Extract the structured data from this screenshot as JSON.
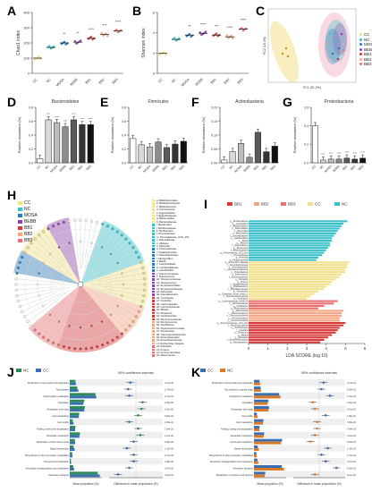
{
  "panels": {
    "A": {
      "letter": "A",
      "ylabel": "Chao1 index",
      "yticks": [
        "0",
        "100",
        "200",
        "300",
        "400"
      ]
    },
    "B": {
      "letter": "B",
      "ylabel": "Shannon index",
      "yticks": [
        "0",
        "2",
        "4",
        "6"
      ]
    },
    "C": {
      "letter": "C",
      "xlabel": "PC1 (31.2%)",
      "ylabel": "PC2 (18.4%)"
    },
    "D": {
      "letter": "D",
      "title": "Bacteroidetes",
      "ylabel": "Relative abundance (%)",
      "yticks": [
        "0.0",
        "0.2",
        "0.4",
        "0.6",
        "0.8"
      ]
    },
    "E": {
      "letter": "E",
      "title": "Firmicutes",
      "ylabel": "Relative abundance (%)",
      "yticks": [
        "0.0",
        "0.2",
        "0.4",
        "0.6",
        "0.8"
      ]
    },
    "F": {
      "letter": "F",
      "title": "Actinobacteria",
      "ylabel": "Relative abundance (%)",
      "yticks": [
        "0.00",
        "0.05",
        "0.10",
        "0.15",
        "0.20"
      ]
    },
    "G": {
      "letter": "G",
      "title": "Proteobacteria",
      "ylabel": "Relative abundance (%)",
      "yticks": [
        "0.0",
        "0.2",
        "0.4",
        "0.6"
      ]
    },
    "H": {
      "letter": "H"
    },
    "I": {
      "letter": "I",
      "xlabel": "LDA SCORE (log 10)",
      "xticks": [
        "0",
        "1",
        "2",
        "3",
        "4",
        "5",
        "6"
      ]
    },
    "J": {
      "letter": "J",
      "ci_title": "95% confidence intervals",
      "xlabel_left": "Mean proportion (%)",
      "xlabel_right": "Difference in mean proportions (%)"
    },
    "K": {
      "letter": "K",
      "ci_title": "95% confidence intervals",
      "xlabel_left": "Mean proportion (%)",
      "xlabel_right": "Difference in mean proportions (%)"
    }
  },
  "groups": [
    "CC",
    "NC",
    "MOSA",
    "BEBB",
    "BB1",
    "BB2",
    "BB3"
  ],
  "colors": {
    "CC": "#f2e08a",
    "NC": "#39c0c8",
    "MOSA": "#2d7bb8",
    "BEBB": "#8e44ad",
    "BB1": "#d63a3a",
    "BB2": "#f4a582",
    "BB3": "#e87070",
    "dark": "#555555",
    "green": "#2e8b57",
    "blue": "#3a6fb0",
    "orange": "#d97a2b"
  },
  "stars": {
    "A": [
      "",
      "",
      "**",
      "**",
      "****",
      "***",
      "****"
    ],
    "B": [
      "",
      "",
      "**",
      "****",
      "***",
      "****",
      "****"
    ],
    "D": [
      "",
      "****",
      "****",
      "****",
      "****",
      "****",
      "****"
    ],
    "E": [
      "",
      "",
      "",
      "",
      "",
      "",
      ""
    ],
    "F": [
      "",
      "",
      "",
      "",
      "",
      "*",
      ""
    ],
    "G": [
      "",
      "****",
      "****",
      "****",
      "****",
      "****",
      "****"
    ]
  },
  "chart_data": [
    {
      "id": "A",
      "type": "scatter",
      "ylabel": "Chao1 index",
      "ylim": [
        0,
        400
      ],
      "categories": [
        "CC",
        "NC",
        "MOSA",
        "BEBB",
        "BB1",
        "BB2",
        "BB3"
      ],
      "values": [
        100,
        170,
        200,
        205,
        230,
        255,
        280
      ]
    },
    {
      "id": "B",
      "type": "scatter",
      "ylabel": "Shannon index",
      "ylim": [
        0,
        7
      ],
      "categories": [
        "CC",
        "NC",
        "MOSA",
        "BEBB",
        "BB1",
        "BB2",
        "BB3"
      ],
      "values": [
        2.3,
        3.9,
        4.4,
        4.6,
        4.4,
        4.2,
        5.1
      ]
    },
    {
      "id": "D",
      "type": "bar",
      "title": "Bacteroidetes",
      "ylabel": "Relative abundance (%)",
      "ylim": [
        0,
        0.8
      ],
      "categories": [
        "CC",
        "NC",
        "MOSA",
        "BEBB",
        "BB1",
        "BB2",
        "BB3"
      ],
      "values": [
        0.06,
        0.62,
        0.58,
        0.52,
        0.62,
        0.55,
        0.55
      ]
    },
    {
      "id": "E",
      "type": "bar",
      "title": "Firmicutes",
      "ylabel": "Relative abundance (%)",
      "ylim": [
        0,
        0.8
      ],
      "categories": [
        "CC",
        "NC",
        "MOSA",
        "BEBB",
        "BB1",
        "BB2",
        "BB3"
      ],
      "values": [
        0.35,
        0.26,
        0.23,
        0.3,
        0.22,
        0.27,
        0.31
      ]
    },
    {
      "id": "F",
      "type": "bar",
      "title": "Actinobacteria",
      "ylabel": "Relative abundance (%)",
      "ylim": [
        0,
        0.2
      ],
      "categories": [
        "CC",
        "NC",
        "MOSA",
        "BEBB",
        "BB1",
        "BB2",
        "BB3"
      ],
      "values": [
        0.01,
        0.04,
        0.07,
        0.02,
        0.11,
        0.04,
        0.06
      ]
    },
    {
      "id": "G",
      "type": "bar",
      "title": "Proteobacteria",
      "ylabel": "Relative abundance (%)",
      "ylim": [
        0,
        0.6
      ],
      "categories": [
        "CC",
        "NC",
        "MOSA",
        "BEBB",
        "BB1",
        "BB2",
        "BB3"
      ],
      "values": [
        0.4,
        0.03,
        0.04,
        0.04,
        0.05,
        0.04,
        0.05
      ]
    },
    {
      "id": "I",
      "type": "bar",
      "orientation": "horizontal",
      "xlabel": "LDA SCORE (log 10)",
      "xlim": [
        0,
        6
      ],
      "legend": [
        "BB1",
        "BB2",
        "BB3",
        "CC",
        "NC"
      ],
      "bars": [
        {
          "label": "g__Muribaculaceae",
          "group": "NC",
          "value": 5.1
        },
        {
          "label": "g__Lactobacillus",
          "group": "NC",
          "value": 4.9
        },
        {
          "label": "f__Muribaculaceae",
          "group": "NC",
          "value": 4.8
        },
        {
          "label": "o__Bacteroidales",
          "group": "NC",
          "value": 4.7
        },
        {
          "label": "c__Bacteroidia",
          "group": "NC",
          "value": 4.6
        },
        {
          "label": "p__Bacteroidota",
          "group": "NC",
          "value": 4.5
        },
        {
          "label": "f__Lactobacillaceae",
          "group": "NC",
          "value": 4.4
        },
        {
          "label": "o__Lactobacillales",
          "group": "NC",
          "value": 4.3
        },
        {
          "label": "c__Bacilli",
          "group": "NC",
          "value": 4.3
        },
        {
          "label": "g__Alistipes",
          "group": "NC",
          "value": 4.2
        },
        {
          "label": "f__Rikenellaceae",
          "group": "NC",
          "value": 4.2
        },
        {
          "label": "g__Bacteroides",
          "group": "NC",
          "value": 4.1
        },
        {
          "label": "f__Bacteroidaceae",
          "group": "NC",
          "value": 4.0
        },
        {
          "label": "g__Prevotellaceae_UCG_001",
          "group": "NC",
          "value": 3.9
        },
        {
          "label": "f__Prevotellaceae",
          "group": "NC",
          "value": 3.8
        },
        {
          "label": "g__Rikenella",
          "group": "NC",
          "value": 3.6
        },
        {
          "label": "g__Parabacteroides",
          "group": "NC",
          "value": 3.5
        },
        {
          "label": "g__Escherichia_Shigella",
          "group": "CC",
          "value": 5.2
        },
        {
          "label": "f__Enterobacteriaceae",
          "group": "CC",
          "value": 5.1
        },
        {
          "label": "o__Enterobacterales",
          "group": "CC",
          "value": 5.1
        },
        {
          "label": "c__Gammaproteobacteria",
          "group": "CC",
          "value": 5.0
        },
        {
          "label": "p__Proteobacteria",
          "group": "CC",
          "value": 5.0
        },
        {
          "label": "g__Enterococcus",
          "group": "CC",
          "value": 4.8
        },
        {
          "label": "f__Enterococcaceae",
          "group": "CC",
          "value": 4.7
        },
        {
          "label": "g__Klebsiella",
          "group": "CC",
          "value": 4.5
        },
        {
          "label": "g__Proteus",
          "group": "CC",
          "value": 4.3
        },
        {
          "label": "f__Morganellaceae",
          "group": "CC",
          "value": 4.2
        },
        {
          "label": "g__Bifidobacterium",
          "group": "CC",
          "value": 4.0
        },
        {
          "label": "f__Bifidobacteriaceae",
          "group": "CC",
          "value": 3.9
        },
        {
          "label": "g__Romboutsia",
          "group": "CC",
          "value": 3.6
        },
        {
          "label": "g__Clostridium_sensu_stricto_1",
          "group": "CC",
          "value": 3.4
        },
        {
          "label": "f__Peptostreptococcaceae",
          "group": "CC",
          "value": 3.2
        },
        {
          "label": "g__Turicibacter",
          "group": "CC",
          "value": 3.0
        },
        {
          "label": "g__Lachnospiraceae_NK4A136",
          "group": "BB3",
          "value": 4.6
        },
        {
          "label": "f__Lachnospiraceae",
          "group": "BB3",
          "value": 4.4
        },
        {
          "label": "g__Oscillibacter",
          "group": "BB3",
          "value": 3.9
        },
        {
          "label": "g__Ruminococcus",
          "group": "BB3",
          "value": 3.6
        },
        {
          "label": "g__Akkermansia",
          "group": "BB2",
          "value": 4.9
        },
        {
          "label": "f__Akkermansiaceae",
          "group": "BB2",
          "value": 4.8
        },
        {
          "label": "o__Verrucomicrobiales",
          "group": "BB2",
          "value": 4.8
        },
        {
          "label": "c__Verrucomicrobiae",
          "group": "BB2",
          "value": 4.7
        },
        {
          "label": "p__Verrucomicrobiota",
          "group": "BB2",
          "value": 4.7
        },
        {
          "label": "g__Ruminococcaceae_UCG_014",
          "group": "BB1",
          "value": 5.0
        },
        {
          "label": "f__Ruminococcaceae",
          "group": "BB1",
          "value": 4.9
        },
        {
          "label": "o__Oscillospirales",
          "group": "BB1",
          "value": 4.7
        },
        {
          "label": "c__Clostridia",
          "group": "BB1",
          "value": 4.6
        },
        {
          "label": "p__Firmicutes",
          "group": "BB1",
          "value": 4.5
        },
        {
          "label": "g__Blautia",
          "group": "BB1",
          "value": 4.3
        },
        {
          "label": "g__Dubosiella",
          "group": "BB1",
          "value": 4.1
        },
        {
          "label": "f__Erysipelotrichaceae",
          "group": "BB1",
          "value": 3.9
        },
        {
          "label": "g__Faecalibaculum",
          "group": "BB1",
          "value": 3.7
        }
      ]
    },
    {
      "id": "J",
      "type": "bar",
      "orientation": "horizontal",
      "legend": [
        "NC",
        "CC"
      ],
      "rows": [
        {
          "pathway": "Metabolism of terpenoids and polyketides",
          "nc": 2.1,
          "cc": 2.3,
          "diff": -0.25,
          "p": "2.13e-02"
        },
        {
          "pathway": "Transcription",
          "nc": 2.8,
          "cc": 3.2,
          "diff": -0.35,
          "p": "1.74e-03"
        },
        {
          "pathway": "Carbohydrate metabolism",
          "nc": 9.6,
          "cc": 9.9,
          "diff": -0.3,
          "p": "4.41e-02"
        },
        {
          "pathway": "Translation",
          "nc": 5.4,
          "cc": 5.1,
          "diff": 0.3,
          "p": "2.02e-03"
        },
        {
          "pathway": "Replication and repair",
          "nc": 5.6,
          "cc": 5.4,
          "diff": 0.25,
          "p": "4.01e-02"
        },
        {
          "pathway": "Lipid metabolism",
          "nc": 3.5,
          "cc": 3.4,
          "diff": 0.1,
          "p": "3.53e-02"
        },
        {
          "pathway": "Cell motility",
          "nc": 1.1,
          "cc": 1.4,
          "diff": -0.3,
          "p": "1.05e-02"
        },
        {
          "pathway": "Folding, sorting and degradation",
          "nc": 2.1,
          "cc": 2.0,
          "diff": 0.1,
          "p": "7.64e-03"
        },
        {
          "pathway": "Nucleotide metabolism",
          "nc": 3.8,
          "cc": 3.6,
          "diff": 0.2,
          "p": "1.10e-02"
        },
        {
          "pathway": "Metabolism of other amino acids",
          "nc": 1.9,
          "cc": 2.0,
          "diff": -0.1,
          "p": "3.90e-02"
        },
        {
          "pathway": "Signal transduction",
          "nc": 1.4,
          "cc": 1.8,
          "diff": -0.4,
          "p": "1.32e-02"
        },
        {
          "pathway": "Biosynthesis of other secondary metabolites",
          "nc": 0.9,
          "cc": 1.0,
          "diff": -0.1,
          "p": "2.47e-02"
        },
        {
          "pathway": "Transport and catabolism",
          "nc": 0.4,
          "cc": 0.5,
          "diff": -0.1,
          "p": "1.08e-02"
        },
        {
          "pathway": "Xenobiotics biodegradation and metabolism",
          "nc": 1.3,
          "cc": 1.6,
          "diff": -0.3,
          "p": "3.67e-02"
        },
        {
          "pathway": "Membrane transport",
          "nc": 10.4,
          "cc": 11.2,
          "diff": -0.8,
          "p": "4.52e-02"
        }
      ]
    },
    {
      "id": "K",
      "type": "bar",
      "orientation": "horizontal",
      "legend": [
        "CC",
        "NC"
      ],
      "rows": [
        {
          "pathway": "Metabolism of terpenoids and polyketides",
          "nc": 2.3,
          "cc": 2.1,
          "diff": 0.2,
          "p": "2.13e-02"
        },
        {
          "pathway": "Not included in regular maps",
          "nc": 2.6,
          "cc": 2.5,
          "diff": 0.1,
          "p": "3.04e-02"
        },
        {
          "pathway": "Cytoplasmic metabolism",
          "nc": 9.9,
          "cc": 9.4,
          "diff": 0.5,
          "p": "1.78e-02"
        },
        {
          "pathway": "Translation",
          "nc": 5.1,
          "cc": 5.4,
          "diff": -0.3,
          "p": "2.02e-03"
        },
        {
          "pathway": "Replication and repair",
          "nc": 5.4,
          "cc": 5.6,
          "diff": -0.2,
          "p": "4.01e-02"
        },
        {
          "pathway": "Cell motility",
          "nc": 1.4,
          "cc": 1.1,
          "diff": 0.3,
          "p": "1.05e-02"
        },
        {
          "pathway": "Lipid metabolism",
          "nc": 3.4,
          "cc": 3.5,
          "diff": -0.1,
          "p": "3.53e-02"
        },
        {
          "pathway": "Folding, sorting and degradation",
          "nc": 2.0,
          "cc": 2.1,
          "diff": -0.1,
          "p": "7.64e-03"
        },
        {
          "pathway": "Nucleotide metabolism",
          "nc": 3.6,
          "cc": 3.8,
          "diff": -0.2,
          "p": "1.10e-02"
        },
        {
          "pathway": "Amino acid metabolism",
          "nc": 10.1,
          "cc": 10.5,
          "diff": -0.4,
          "p": "2.63e-02"
        },
        {
          "pathway": "Signal transduction",
          "nc": 1.8,
          "cc": 1.4,
          "diff": 0.4,
          "p": "1.32e-02"
        },
        {
          "pathway": "Biosynthesis of other secondary metabolites",
          "nc": 1.0,
          "cc": 0.9,
          "diff": 0.1,
          "p": "2.47e-02"
        },
        {
          "pathway": "Xenobiotics biodegradation and metabolism",
          "nc": 1.6,
          "cc": 1.3,
          "diff": 0.3,
          "p": "3.67e-02"
        },
        {
          "pathway": "Membrane transport",
          "nc": 11.2,
          "cc": 10.4,
          "diff": 0.8,
          "p": "4.52e-02"
        },
        {
          "pathway": "Metabolism of cofactors and vitamins",
          "nc": 4.0,
          "cc": 4.2,
          "diff": -0.2,
          "p": "8.11e-03"
        }
      ]
    }
  ],
  "h_legend": [
    "CC",
    "NC",
    "MOSA",
    "BEBB",
    "BB1",
    "BB2",
    "BB3"
  ],
  "h_taxa": [
    "a: Bifidobacteriales",
    "b: Bifidobacteriaceae",
    "c: Bifidobacterium",
    "d: Coriobacteriia",
    "e: Eggerthellales",
    "f: Eggerthellaceae",
    "g: Bacteroidales",
    "h: Bacteroidaceae",
    "i: Bacteroides",
    "j: Muribaculaceae",
    "k: Muribaculum",
    "l: Prevotellaceae",
    "m: Prevotellaceae_UCG_001",
    "n: Rikenellaceae",
    "o: Alistipes",
    "p: Rikenella",
    "q: Tannerellaceae",
    "r: Parabacteroides",
    "s: Deferribacterales",
    "t: Mucispirillum",
    "u: Bacilli",
    "v: Lactobacillales",
    "w: Lactobacillaceae",
    "x: Lactobacillus",
    "y: Enterococcaceae",
    "z: Enterococcus",
    "a0: Streptococcaceae",
    "a1: Streptococcus",
    "a2: Erysipelotrichales",
    "a3: Erysipelotrichaceae",
    "a4: Dubosiella",
    "a5: Faecalibaculum",
    "a6: Turicibacter",
    "a7: Clostridia",
    "a8: Lachnospirales",
    "a9: Lachnospiraceae",
    "b0: Blautia",
    "b1: Roseburia",
    "b2: Oscillospirales",
    "b3: Ruminococcaceae",
    "b4: Ruminococcus",
    "b5: Oscillibacter",
    "b6: Peptostreptococcales",
    "b7: Romboutsia",
    "b8: Gammaproteobacteria",
    "b9: Enterobacterales",
    "c0: Enterobacteriaceae",
    "c1: Escherichia_Shigella",
    "c2: Klebsiella",
    "c3: Proteus",
    "c4: Verrucomicrobiae",
    "c5: Akkermansia"
  ]
}
